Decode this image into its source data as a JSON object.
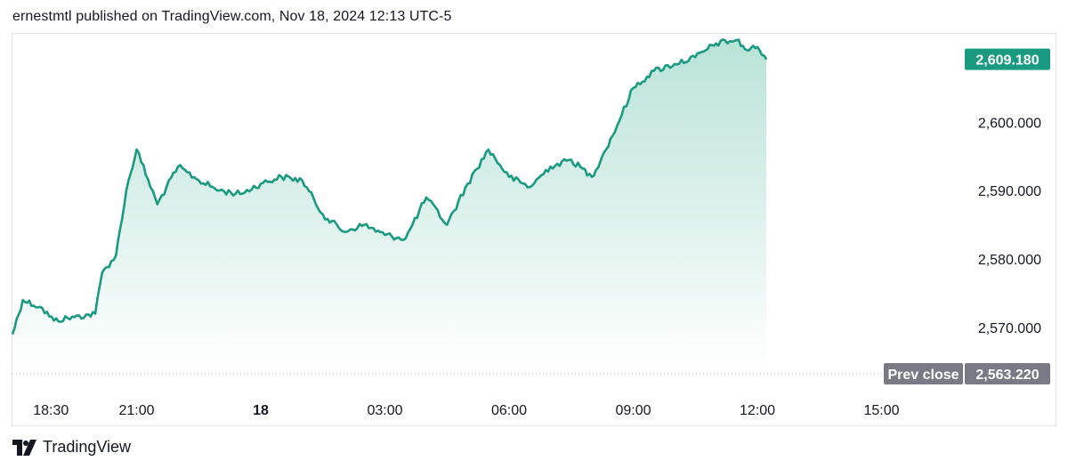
{
  "header": {
    "published_by": "ernestmtl published on TradingView.com, Nov 18, 2024 12:13 UTC-5"
  },
  "footer": {
    "brand": "TradingView",
    "logo_icon": "tradingview-logo-icon"
  },
  "colors": {
    "line": "#1a9a80",
    "fill_top": "#b2e0d3",
    "fill_bottom": "#ffffff",
    "price_badge": "#1a9a80",
    "prev_badge": "#787b86",
    "grid_dots": "#b2b5be"
  },
  "chart_data": {
    "type": "area",
    "xlabel": "",
    "ylabel": "",
    "grid": false,
    "ylim": [
      2563.22,
      2612
    ],
    "y_ticks": [
      2570,
      2580,
      2590,
      2600
    ],
    "y_tick_labels": [
      "2,570.000",
      "2,580.000",
      "2,590.000",
      "2,600.000"
    ],
    "x_ticks": [
      {
        "label": "18:30",
        "bold": false
      },
      {
        "label": "21:00",
        "bold": false
      },
      {
        "label": "18",
        "bold": true
      },
      {
        "label": "03:00",
        "bold": false
      },
      {
        "label": "06:00",
        "bold": false
      },
      {
        "label": "09:00",
        "bold": false
      },
      {
        "label": "12:00",
        "bold": false
      },
      {
        "label": "15:00",
        "bold": false
      }
    ],
    "x_tick_times": [
      "2024-11-17 18:30",
      "2024-11-17 21:00",
      "2024-11-18 00:00",
      "2024-11-18 03:00",
      "2024-11-18 06:00",
      "2024-11-18 09:00",
      "2024-11-18 12:00",
      "2024-11-18 15:00"
    ],
    "last_price": 2609.18,
    "last_price_label": "2,609.180",
    "prev_close": 2563.22,
    "prev_close_label": "2,563.220",
    "prev_close_title": "Prev close",
    "series": [
      {
        "x": [
          "2024-11-17 18:00",
          "2024-11-17 18:15",
          "2024-11-17 18:40",
          "2024-11-17 19:00",
          "2024-11-17 19:30",
          "2024-11-17 20:00",
          "2024-11-17 20:10",
          "2024-11-17 20:30",
          "2024-11-17 20:45",
          "2024-11-17 21:00",
          "2024-11-17 21:30",
          "2024-11-17 22:00",
          "2024-11-17 22:30",
          "2024-11-17 23:00",
          "2024-11-17 23:30",
          "2024-11-18 00:00",
          "2024-11-18 00:30",
          "2024-11-18 01:00",
          "2024-11-18 01:30",
          "2024-11-18 02:00",
          "2024-11-18 02:30",
          "2024-11-18 03:00",
          "2024-11-18 03:30",
          "2024-11-18 04:00",
          "2024-11-18 04:30",
          "2024-11-18 05:00",
          "2024-11-18 05:30",
          "2024-11-18 06:00",
          "2024-11-18 06:30",
          "2024-11-18 07:00",
          "2024-11-18 07:30",
          "2024-11-18 08:00",
          "2024-11-18 08:15",
          "2024-11-18 08:30",
          "2024-11-18 09:00",
          "2024-11-18 09:30",
          "2024-11-18 10:00",
          "2024-11-18 10:30",
          "2024-11-18 10:45",
          "2024-11-18 11:00",
          "2024-11-18 11:30",
          "2024-11-18 11:45",
          "2024-11-18 12:00",
          "2024-11-18 12:13"
        ],
        "y": [
          2569.0,
          2574.0,
          2573.0,
          2571.0,
          2571.5,
          2572.0,
          2578.0,
          2580.5,
          2590.0,
          2596.0,
          2588.0,
          2593.5,
          2591.5,
          2590.0,
          2589.5,
          2591.0,
          2592.0,
          2591.5,
          2586.5,
          2584.0,
          2585.0,
          2583.5,
          2583.0,
          2589.0,
          2585.0,
          2591.0,
          2596.0,
          2592.0,
          2590.5,
          2593.5,
          2594.5,
          2592.0,
          2595.0,
          2598.0,
          2605.0,
          2607.5,
          2608.5,
          2609.5,
          2610.5,
          2611.5,
          2612.0,
          2610.5,
          2611.0,
          2609.18
        ]
      }
    ]
  }
}
